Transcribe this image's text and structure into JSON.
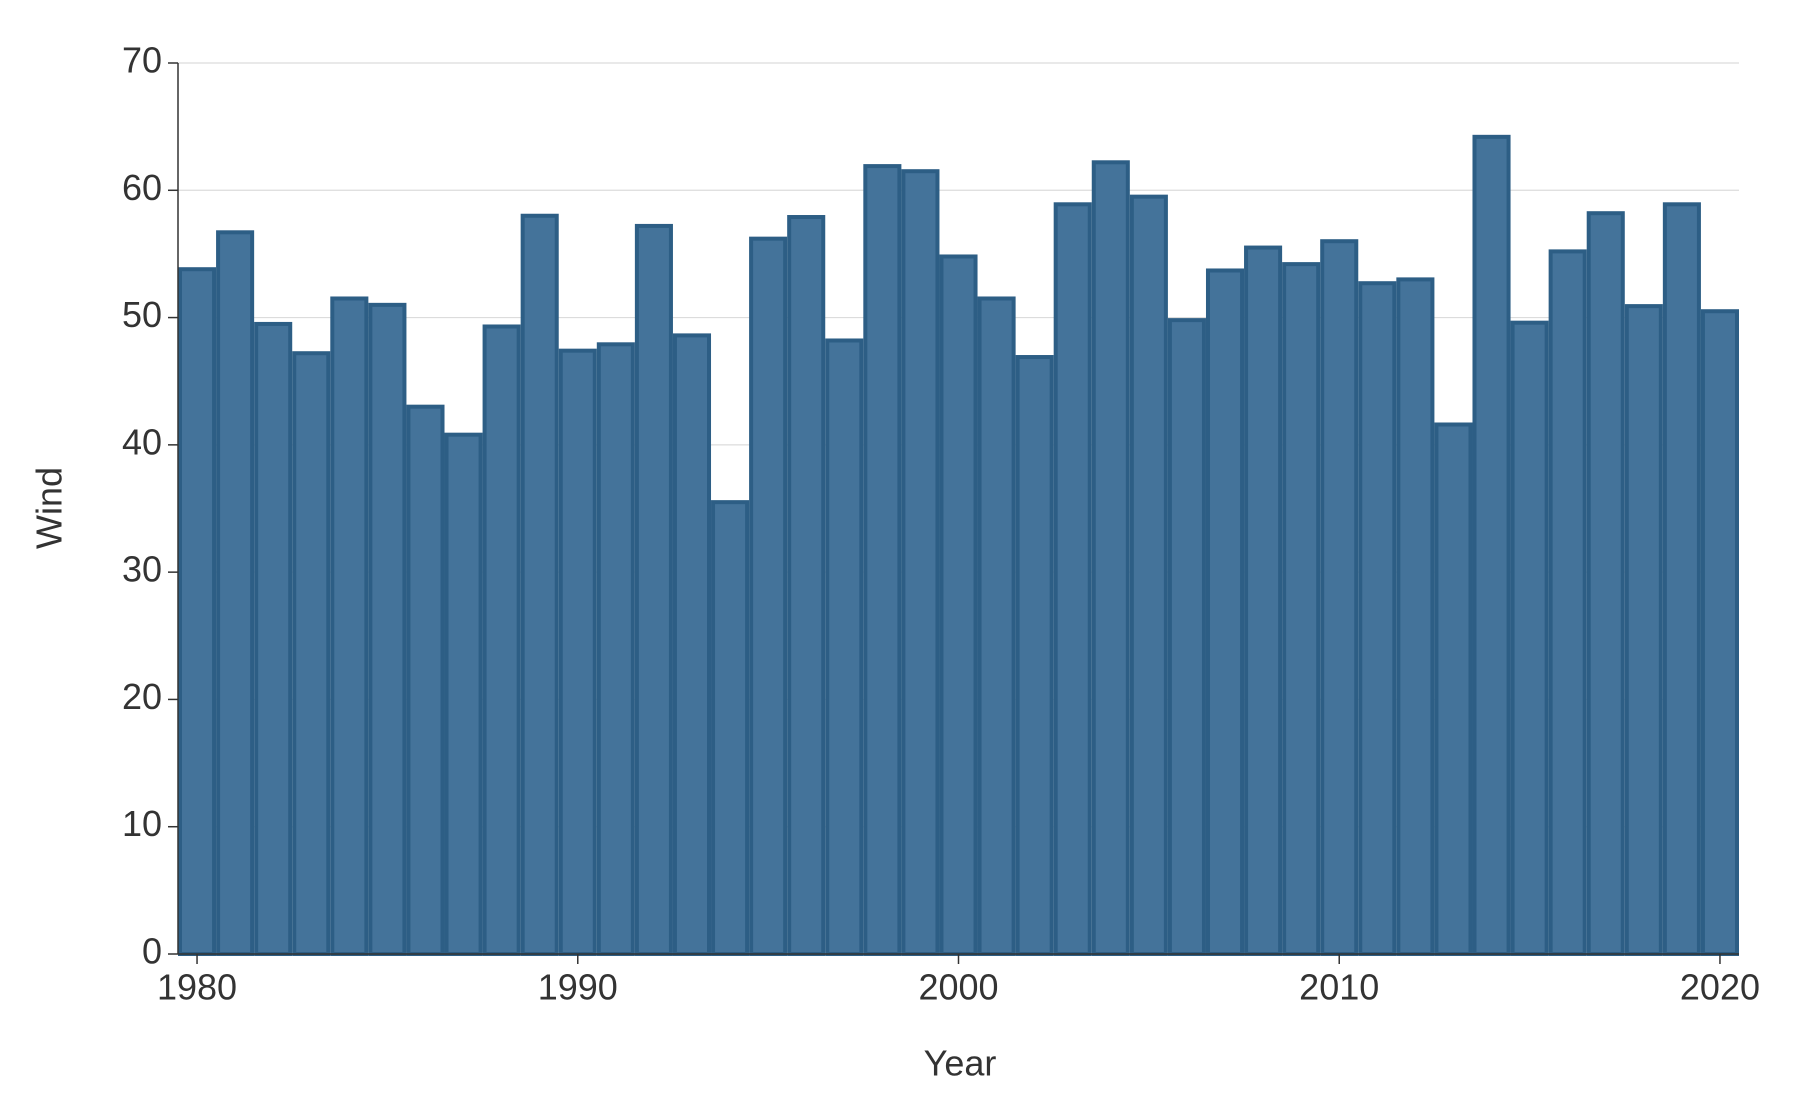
{
  "chart_data": {
    "type": "bar",
    "x_label": "Year",
    "y_label": "Wind",
    "x": [
      1980,
      1981,
      1982,
      1983,
      1984,
      1985,
      1986,
      1987,
      1988,
      1989,
      1990,
      1991,
      1992,
      1993,
      1994,
      1995,
      1996,
      1997,
      1998,
      1999,
      2000,
      2001,
      2002,
      2003,
      2004,
      2005,
      2006,
      2007,
      2008,
      2009,
      2010,
      2011,
      2012,
      2013,
      2014,
      2015,
      2016,
      2017,
      2018,
      2019,
      2020
    ],
    "values": [
      53.8,
      56.7,
      49.5,
      47.2,
      51.5,
      51.0,
      43.0,
      40.8,
      49.3,
      58.0,
      47.4,
      47.9,
      57.2,
      48.6,
      35.5,
      56.2,
      57.9,
      48.2,
      61.9,
      61.5,
      54.8,
      51.5,
      46.9,
      58.9,
      62.2,
      59.5,
      49.8,
      53.7,
      55.5,
      54.2,
      56.0,
      52.7,
      53.0,
      41.6,
      64.2,
      49.6,
      55.2,
      58.2,
      50.9,
      58.9,
      50.5
    ],
    "color": "#44739a",
    "edge_color": "#2d5e85",
    "xlim": [
      1979.5,
      2020.5
    ],
    "xticks": [
      1980,
      1990,
      2000,
      2010,
      2020
    ],
    "ylim": [
      0,
      70
    ],
    "yticks": [
      0,
      10,
      20,
      30,
      40,
      50,
      60,
      70
    ],
    "grid": true
  }
}
